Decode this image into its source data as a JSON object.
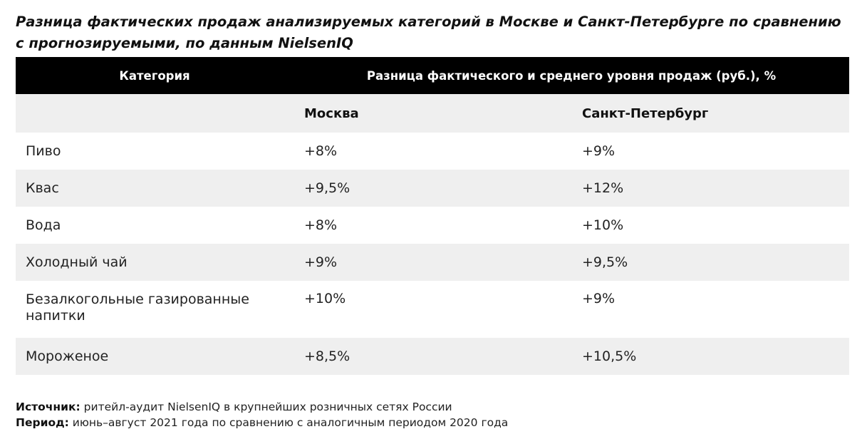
{
  "title": "Разница фактических продаж анализируемых категорий в Москве и Санкт-Петербурге по сравнению с прогнозируемыми, по данным NielsenIQ",
  "table": {
    "header": {
      "category": "Категория",
      "difference": "Разница фактического и среднего уровня продаж (руб.), %"
    },
    "cities": [
      "Москва",
      "Санкт-Петербург"
    ],
    "rows": [
      {
        "category": "Пиво",
        "moscow": "+8%",
        "spb": "+9%"
      },
      {
        "category": "Квас",
        "moscow": "+9,5%",
        "spb": "+12%"
      },
      {
        "category": "Вода",
        "moscow": "+8%",
        "spb": "+10%"
      },
      {
        "category": "Холодный чай",
        "moscow": "+9%",
        "spb": "+9,5%"
      },
      {
        "category": "Безалкогольные газированные напитки",
        "moscow": "+10%",
        "spb": "+9%"
      },
      {
        "category": "Мороженое",
        "moscow": "+8,5%",
        "spb": "+10,5%"
      }
    ]
  },
  "chart_data": {
    "type": "table",
    "title": "Разница фактических продаж анализируемых категорий в Москве и Санкт-Петербурге по сравнению с прогнозируемыми, по данным NielsenIQ",
    "categories": [
      "Пиво",
      "Квас",
      "Вода",
      "Холодный чай",
      "Безалкогольные газированные напитки",
      "Мороженое"
    ],
    "series": [
      {
        "name": "Москва",
        "values": [
          8,
          9.5,
          8,
          9,
          10,
          8.5
        ]
      },
      {
        "name": "Санкт-Петербург",
        "values": [
          9,
          12,
          10,
          9.5,
          9,
          10.5
        ]
      }
    ],
    "unit": "%"
  },
  "notes": {
    "source_label": "Источник:",
    "source_text": "ритейл-аудит NielsenIQ в крупнейших розничных сетях России",
    "period_label": "Период:",
    "period_text": "июнь–август 2021 года по сравнению с аналогичным периодом 2020 года"
  },
  "colors": {
    "header_bg": "#000000",
    "header_text": "#ffffff",
    "stripe": "#efefef"
  }
}
